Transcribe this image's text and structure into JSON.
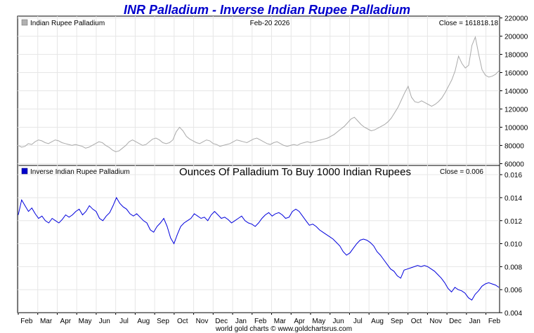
{
  "chart_data": [
    {
      "type": "line",
      "panel": "top",
      "title": "INR Palladium - Inverse Indian Rupee Palladium",
      "legend": "Indian Rupee Palladium",
      "legend_color": "#b0b0b0",
      "date_label": "Feb-20  2026",
      "close_label": "Close = 161818.18",
      "line_color": "#aaaaaa",
      "ylim": [
        58000,
        222000
      ],
      "yticks": [
        60000,
        80000,
        100000,
        120000,
        140000,
        160000,
        180000,
        200000,
        220000
      ],
      "series": [
        {
          "name": "Indian Rupee Palladium",
          "values": [
            80000,
            78000,
            79000,
            82000,
            81000,
            84000,
            86000,
            85000,
            83000,
            82000,
            84000,
            86000,
            85000,
            83000,
            82000,
            81000,
            80000,
            81000,
            80000,
            79000,
            77000,
            78000,
            80000,
            82000,
            84000,
            83000,
            80000,
            78000,
            75000,
            73000,
            74000,
            77000,
            80000,
            84000,
            86000,
            84000,
            82000,
            80000,
            81000,
            84000,
            87000,
            88000,
            86000,
            83000,
            82000,
            83000,
            86000,
            95000,
            100000,
            96000,
            90000,
            87000,
            85000,
            83000,
            82000,
            84000,
            86000,
            85000,
            82000,
            81000,
            79000,
            80000,
            81000,
            82000,
            84000,
            86000,
            85000,
            84000,
            83000,
            85000,
            87000,
            88000,
            86000,
            84000,
            82000,
            81000,
            83000,
            84000,
            82000,
            80000,
            79000,
            80000,
            81000,
            80000,
            82000,
            83000,
            84000,
            83000,
            84000,
            85000,
            86000,
            87000,
            88000,
            90000,
            92000,
            95000,
            98000,
            101000,
            105000,
            109000,
            111000,
            107000,
            103000,
            100000,
            98000,
            96000,
            97000,
            99000,
            101000,
            103000,
            106000,
            110000,
            116000,
            122000,
            130000,
            138000,
            145000,
            133000,
            128000,
            127000,
            129000,
            127000,
            125000,
            123000,
            125000,
            128000,
            132000,
            138000,
            145000,
            152000,
            162000,
            178000,
            170000,
            165000,
            168000,
            190000,
            199000,
            180000,
            163000,
            157000,
            155000,
            156000,
            158000,
            161818
          ]
        }
      ]
    },
    {
      "type": "line",
      "panel": "bottom",
      "legend": "Inverse Indian Rupee Palladium",
      "legend_color": "#0000cc",
      "subtitle": "Ounces Of Palladium To Buy 1000 Indian Rupees",
      "close_label": "Close = 0.006",
      "line_color": "#0000dd",
      "ylim": [
        0.004,
        0.0168
      ],
      "yticks": [
        0.004,
        0.006,
        0.008,
        0.01,
        0.012,
        0.014,
        0.016
      ],
      "ytick_labels": [
        "0.004",
        "0.006",
        "0.008",
        "0.010",
        "0.012",
        "0.014",
        "0.016"
      ],
      "xlabels": [
        "Feb",
        "Mar",
        "Apr",
        "May",
        "Jun",
        "Jul",
        "Aug",
        "Sep",
        "Oct",
        "Nov",
        "Dec",
        "Jan",
        "Feb",
        "Mar",
        "Apr",
        "May",
        "Jun",
        "Jul",
        "Aug",
        "Sep",
        "Oct",
        "Nov",
        "Dec",
        "Jan",
        "Feb"
      ],
      "series": [
        {
          "name": "Inverse Indian Rupee Palladium",
          "values": [
            0.0125,
            0.0138,
            0.0133,
            0.0128,
            0.0131,
            0.0126,
            0.0122,
            0.0124,
            0.012,
            0.0118,
            0.0122,
            0.012,
            0.0118,
            0.0121,
            0.0125,
            0.0123,
            0.0125,
            0.0128,
            0.013,
            0.0125,
            0.0128,
            0.0133,
            0.013,
            0.0128,
            0.0122,
            0.012,
            0.0124,
            0.0127,
            0.0133,
            0.014,
            0.0135,
            0.0132,
            0.013,
            0.0126,
            0.0124,
            0.0126,
            0.0123,
            0.012,
            0.0118,
            0.0112,
            0.011,
            0.0115,
            0.0118,
            0.0122,
            0.0115,
            0.0105,
            0.01,
            0.0108,
            0.0115,
            0.0118,
            0.012,
            0.0122,
            0.0126,
            0.0124,
            0.0122,
            0.0123,
            0.012,
            0.0125,
            0.0128,
            0.0125,
            0.0122,
            0.0123,
            0.0121,
            0.0118,
            0.012,
            0.0122,
            0.0124,
            0.012,
            0.0118,
            0.0117,
            0.0115,
            0.0118,
            0.0122,
            0.0125,
            0.0127,
            0.0124,
            0.0126,
            0.0127,
            0.0125,
            0.0122,
            0.0123,
            0.0128,
            0.013,
            0.0128,
            0.0124,
            0.012,
            0.0116,
            0.0117,
            0.0115,
            0.0112,
            0.011,
            0.0108,
            0.0106,
            0.0104,
            0.0101,
            0.0098,
            0.0093,
            0.009,
            0.0092,
            0.0096,
            0.01,
            0.0103,
            0.0104,
            0.0103,
            0.0101,
            0.0098,
            0.0093,
            0.009,
            0.0086,
            0.0082,
            0.0078,
            0.0076,
            0.0072,
            0.007,
            0.0077,
            0.0078,
            0.0079,
            0.008,
            0.0081,
            0.008,
            0.0081,
            0.008,
            0.0078,
            0.0076,
            0.0073,
            0.007,
            0.0066,
            0.0061,
            0.0058,
            0.0062,
            0.006,
            0.0059,
            0.0057,
            0.0053,
            0.0051,
            0.0056,
            0.0059,
            0.0063,
            0.0065,
            0.0066,
            0.0065,
            0.0064,
            0.0062
          ]
        }
      ]
    }
  ],
  "footer": "world gold charts © www.goldchartsrus.com"
}
